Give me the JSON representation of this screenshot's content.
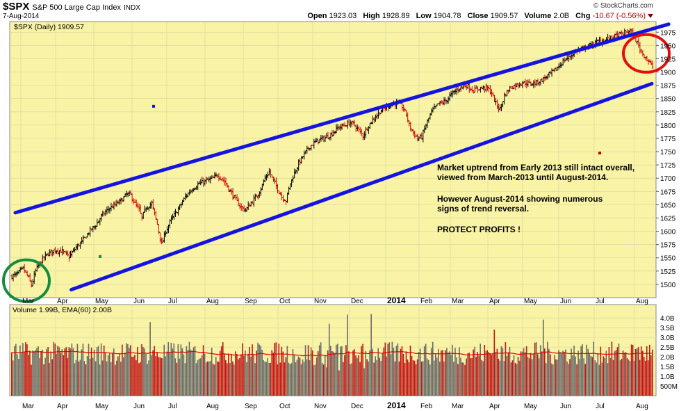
{
  "header": {
    "symbol": "$SPX",
    "name": "S&P 500 Large Cap Index",
    "exchange": "INDX",
    "date": "7-Aug-2014",
    "watermark": "© StockCharts.com",
    "open_label": "Open",
    "open": "1923.03",
    "high_label": "High",
    "high": "1928.89",
    "low_label": "Low",
    "low": "1904.78",
    "close_label": "Close",
    "close": "1909.57",
    "volume_label": "Volume",
    "volume": "2.0B",
    "chg_label": "Chg",
    "chg": "-10.67 (-0.56%)"
  },
  "chart_data": {
    "type": "candlestick",
    "price_legend": "$SPX (Daily) 1909.57",
    "volume_legend": "Volume 1.99B, EMA(60) 2.00B",
    "ylim": [
      1475,
      1995
    ],
    "y_ticks": [
      1500,
      1525,
      1550,
      1575,
      1600,
      1625,
      1650,
      1675,
      1700,
      1725,
      1750,
      1775,
      1800,
      1825,
      1850,
      1875,
      1900,
      1925,
      1950,
      1975
    ],
    "vol_ticks": [
      "500M",
      "1.0B",
      "1.5B",
      "2.0B",
      "2.5B",
      "3.0B",
      "3.5B",
      "4.0B"
    ],
    "x_labels": [
      "Mar",
      "Apr",
      "May",
      "Jun",
      "Jul",
      "Aug",
      "Sep",
      "Oct",
      "Nov",
      "Dec",
      "2014",
      "Feb",
      "Mar",
      "Apr",
      "May",
      "Jun",
      "Jul",
      "Aug"
    ],
    "price_anchors": [
      [
        0,
        1515
      ],
      [
        4,
        1520
      ],
      [
        8,
        1530
      ],
      [
        12,
        1512
      ],
      [
        14,
        1498
      ],
      [
        17,
        1525
      ],
      [
        21,
        1545
      ],
      [
        26,
        1558
      ],
      [
        31,
        1565
      ],
      [
        36,
        1562
      ],
      [
        41,
        1552
      ],
      [
        46,
        1570
      ],
      [
        50,
        1580
      ],
      [
        55,
        1598
      ],
      [
        60,
        1612
      ],
      [
        64,
        1628
      ],
      [
        69,
        1642
      ],
      [
        74,
        1650
      ],
      [
        79,
        1660
      ],
      [
        82,
        1670
      ],
      [
        85,
        1668
      ],
      [
        88,
        1652
      ],
      [
        91,
        1640
      ],
      [
        93,
        1625
      ],
      [
        96,
        1645
      ],
      [
        100,
        1652
      ],
      [
        104,
        1613
      ],
      [
        107,
        1575
      ],
      [
        110,
        1600
      ],
      [
        114,
        1622
      ],
      [
        119,
        1642
      ],
      [
        124,
        1665
      ],
      [
        129,
        1680
      ],
      [
        134,
        1690
      ],
      [
        139,
        1695
      ],
      [
        144,
        1700
      ],
      [
        147,
        1706
      ],
      [
        150,
        1700
      ],
      [
        153,
        1690
      ],
      [
        155,
        1680
      ],
      [
        158,
        1668
      ],
      [
        161,
        1655
      ],
      [
        164,
        1645
      ],
      [
        167,
        1640
      ],
      [
        170,
        1650
      ],
      [
        174,
        1663
      ],
      [
        178,
        1680
      ],
      [
        181,
        1700
      ],
      [
        184,
        1712
      ],
      [
        187,
        1695
      ],
      [
        190,
        1680
      ],
      [
        193,
        1665
      ],
      [
        196,
        1658
      ],
      [
        199,
        1690
      ],
      [
        202,
        1710
      ],
      [
        205,
        1728
      ],
      [
        209,
        1745
      ],
      [
        213,
        1760
      ],
      [
        218,
        1770
      ],
      [
        223,
        1775
      ],
      [
        228,
        1782
      ],
      [
        233,
        1795
      ],
      [
        238,
        1800
      ],
      [
        242,
        1805
      ],
      [
        245,
        1800
      ],
      [
        248,
        1790
      ],
      [
        251,
        1780
      ],
      [
        254,
        1795
      ],
      [
        258,
        1810
      ],
      [
        263,
        1825
      ],
      [
        268,
        1835
      ],
      [
        273,
        1840
      ],
      [
        276,
        1840
      ],
      [
        279,
        1835
      ],
      [
        282,
        1820
      ],
      [
        284,
        1800
      ],
      [
        287,
        1785
      ],
      [
        290,
        1775
      ],
      [
        293,
        1778
      ],
      [
        296,
        1800
      ],
      [
        300,
        1825
      ],
      [
        305,
        1840
      ],
      [
        310,
        1845
      ],
      [
        315,
        1860
      ],
      [
        320,
        1870
      ],
      [
        325,
        1875
      ],
      [
        330,
        1865
      ],
      [
        335,
        1870
      ],
      [
        340,
        1870
      ],
      [
        343,
        1860
      ],
      [
        346,
        1840
      ],
      [
        349,
        1830
      ],
      [
        352,
        1855
      ],
      [
        356,
        1870
      ],
      [
        360,
        1875
      ],
      [
        365,
        1880
      ],
      [
        370,
        1878
      ],
      [
        375,
        1880
      ],
      [
        379,
        1885
      ],
      [
        384,
        1895
      ],
      [
        389,
        1905
      ],
      [
        394,
        1920
      ],
      [
        399,
        1930
      ],
      [
        404,
        1940
      ],
      [
        409,
        1945
      ],
      [
        414,
        1950
      ],
      [
        419,
        1958
      ],
      [
        424,
        1960
      ],
      [
        429,
        1965
      ],
      [
        434,
        1970
      ],
      [
        439,
        1975
      ],
      [
        442,
        1978
      ],
      [
        444,
        1970
      ],
      [
        447,
        1955
      ],
      [
        450,
        1938
      ],
      [
        453,
        1928
      ],
      [
        455,
        1920
      ],
      [
        458,
        1910
      ]
    ],
    "channel_upper": [
      [
        0,
        1635
      ],
      [
        470,
        1990
      ]
    ],
    "channel_lower": [
      [
        40,
        1490
      ],
      [
        458,
        1878
      ]
    ],
    "annotations": [
      "Market uptrend from Early 2013 still intact overall,",
      "viewed from March-2013 until August-2014.",
      "However August-2014 showing numerous",
      "signs of trend reversal.",
      "PROTECT PROFITS !"
    ],
    "colors": {
      "panel_bg": "#f8f3a5",
      "up": "#000000",
      "down": "#cc0000",
      "trend": "#1414e0",
      "circle_green": "#168c3c",
      "circle_red": "#e01010",
      "ema": "#dd0000",
      "vol_up": "#6b6b6b",
      "vol_down": "#c01818"
    }
  }
}
